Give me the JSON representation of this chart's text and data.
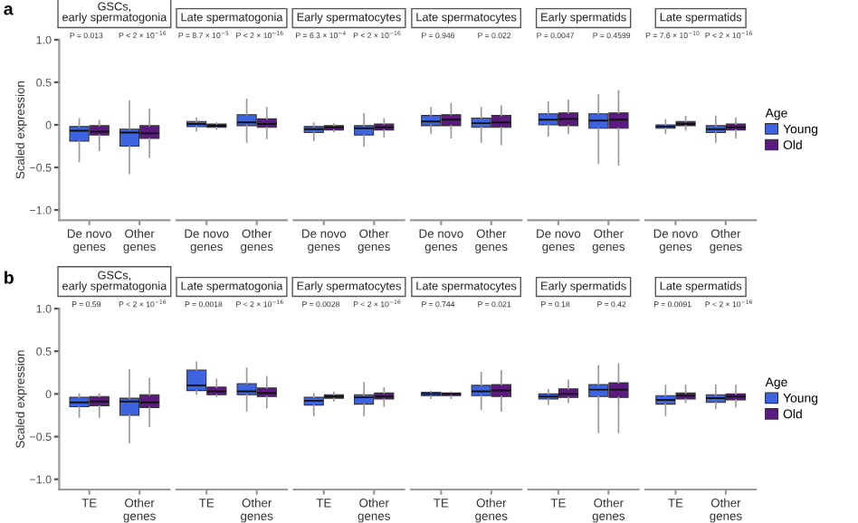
{
  "chart_data": [
    {
      "type": "box",
      "title": "GSCs,\nearly spermatogonia",
      "ylabel": "Scaled expression",
      "categories": [
        "De novo\ngenes",
        "Other\ngenes"
      ],
      "ylim": [
        -1.12,
        1.0
      ],
      "yticks": [
        {
          "value": -1,
          "label": "−1.0"
        },
        {
          "value": -0.5,
          "label": "−0.5"
        },
        0,
        0.5,
        {
          "value": 1,
          "label": "1.0"
        }
      ],
      "annotations": [
        "a",
        "P = 0.013",
        "P < 2 × 10$^{−16}$"
      ],
      "series": [
        {
          "color": "#3d63e0",
          "boxes": [
            {
              "low": -0.43,
              "q1": -0.19,
              "median": -0.07,
              "q3": -0.02,
              "high": 0.07
            },
            {
              "low": -0.57,
              "q1": -0.25,
              "median": -0.09,
              "q3": -0.05,
              "high": 0.28
            }
          ]
        },
        {
          "color": "#5a1a80",
          "boxes": [
            {
              "low": -0.3,
              "q1": -0.12,
              "median": -0.08,
              "q3": -0.01,
              "high": 0.05
            },
            {
              "low": -0.38,
              "q1": -0.16,
              "median": -0.1,
              "q3": -0.01,
              "high": 0.18
            }
          ]
        }
      ]
    },
    {
      "type": "box",
      "title": "Late spermatogonia",
      "categories": [
        "De novo\ngenes",
        "Other\ngenes"
      ],
      "ylim": [
        -1.12,
        1.0
      ],
      "tick_labels": "x",
      "annotations": [
        "P = 8.7 × 10$^{−5}$",
        "P < 2 × 10$^{−16}$"
      ],
      "series": [
        {
          "color": "#3d63e0",
          "boxes": [
            {
              "low": -0.07,
              "q1": -0.02,
              "median": 0.01,
              "q3": 0.04,
              "high": 0.08
            },
            {
              "low": -0.2,
              "q1": -0.01,
              "median": 0.03,
              "q3": 0.12,
              "high": 0.3
            }
          ]
        },
        {
          "color": "#5a1a80",
          "boxes": [
            {
              "low": -0.05,
              "q1": -0.03,
              "median": -0.01,
              "q3": 0.01,
              "high": 0.02
            },
            {
              "low": -0.16,
              "q1": -0.03,
              "median": 0.01,
              "q3": 0.07,
              "high": 0.2
            }
          ]
        }
      ]
    },
    {
      "type": "box",
      "title": "Early spermatocytes",
      "categories": [
        "De novo\ngenes",
        "Other\ngenes"
      ],
      "ylim": [
        -1.12,
        1.0
      ],
      "tick_labels": "x",
      "annotations": [
        "P = 6.3 × 10$^{−4}$",
        "P < 2 × 10$^{−16}$"
      ],
      "series": [
        {
          "color": "#3d63e0",
          "boxes": [
            {
              "low": -0.18,
              "q1": -0.09,
              "median": -0.05,
              "q3": -0.02,
              "high": 0.02
            },
            {
              "low": -0.25,
              "q1": -0.12,
              "median": -0.04,
              "q3": -0.01,
              "high": 0.13
            }
          ]
        },
        {
          "color": "#5a1a80",
          "boxes": [
            {
              "low": -0.08,
              "q1": -0.06,
              "median": -0.03,
              "q3": -0.01,
              "high": 0.01
            },
            {
              "low": -0.14,
              "q1": -0.06,
              "median": -0.03,
              "q3": 0.01,
              "high": 0.07
            }
          ]
        }
      ]
    },
    {
      "type": "box",
      "title": "Late spermatocytes",
      "categories": [
        "De novo\ngenes",
        "Other\ngenes"
      ],
      "ylim": [
        -1.12,
        1.0
      ],
      "tick_labels": "x",
      "annotations": [
        "P = 0.946",
        "P = 0.022"
      ],
      "series": [
        {
          "color": "#3d63e0",
          "boxes": [
            {
              "low": -0.1,
              "q1": -0.01,
              "median": 0.04,
              "q3": 0.11,
              "high": 0.2
            },
            {
              "low": -0.2,
              "q1": -0.03,
              "median": 0.02,
              "q3": 0.08,
              "high": 0.2
            }
          ]
        },
        {
          "color": "#5a1a80",
          "boxes": [
            {
              "low": -0.15,
              "q1": -0.01,
              "median": 0.06,
              "q3": 0.12,
              "high": 0.25
            },
            {
              "low": -0.23,
              "q1": -0.03,
              "median": 0.03,
              "q3": 0.11,
              "high": 0.22
            }
          ]
        }
      ]
    },
    {
      "type": "box",
      "title": "Early spermatids",
      "categories": [
        "De novo\ngenes",
        "Other\ngenes"
      ],
      "ylim": [
        -1.12,
        1.0
      ],
      "tick_labels": "x",
      "annotations": [
        "P = 0.0047",
        "P = 0.4599"
      ],
      "series": [
        {
          "color": "#3d63e0",
          "boxes": [
            {
              "low": -0.13,
              "q1": 0.0,
              "median": 0.06,
              "q3": 0.13,
              "high": 0.27
            },
            {
              "low": -0.45,
              "q1": -0.04,
              "median": 0.05,
              "q3": 0.13,
              "high": 0.35
            }
          ]
        },
        {
          "color": "#5a1a80",
          "boxes": [
            {
              "low": -0.1,
              "q1": -0.01,
              "median": 0.07,
              "q3": 0.14,
              "high": 0.29
            },
            {
              "low": -0.47,
              "q1": -0.04,
              "median": 0.06,
              "q3": 0.14,
              "high": 0.4
            }
          ]
        }
      ]
    },
    {
      "type": "box",
      "title": "Late spermatids",
      "categories": [
        "De novo\ngenes",
        "Other\ngenes"
      ],
      "ylim": [
        -1.12,
        1.0
      ],
      "tick_labels": "x",
      "legend": "right",
      "legend_title": "Age",
      "annotations": [
        "P = 7.6 × 10$^{−10}$",
        "P < 2 × 10$^{−16}$"
      ],
      "series": [
        {
          "name": "Young",
          "color": "#3d63e0",
          "boxes": [
            {
              "low": -0.1,
              "q1": -0.04,
              "median": -0.02,
              "q3": 0.0,
              "high": 0.06
            },
            {
              "low": -0.2,
              "q1": -0.09,
              "median": -0.05,
              "q3": -0.01,
              "high": 0.1
            }
          ]
        },
        {
          "name": "Old",
          "color": "#5a1a80",
          "boxes": [
            {
              "low": -0.06,
              "q1": -0.01,
              "median": 0.01,
              "q3": 0.04,
              "high": 0.1
            },
            {
              "low": -0.15,
              "q1": -0.06,
              "median": -0.03,
              "q3": 0.01,
              "high": 0.08
            }
          ]
        }
      ]
    },
    {
      "type": "box",
      "title": "GSCs,\nearly spermatogonia",
      "ylabel": "Scaled expression",
      "categories": [
        "TE",
        "Other\ngenes"
      ],
      "ylim": [
        -1.12,
        1.0
      ],
      "yticks": [
        {
          "value": -1,
          "label": "−1.0"
        },
        {
          "value": -0.5,
          "label": "−0.5"
        },
        0,
        0.5,
        {
          "value": 1,
          "label": "1.0"
        }
      ],
      "annotations": [
        "b",
        "P = 0.59",
        "P < 2 × 10$^{−16}$"
      ],
      "series": [
        {
          "color": "#3d63e0",
          "boxes": [
            {
              "low": -0.27,
              "q1": -0.15,
              "median": -0.1,
              "q3": -0.04,
              "high": 0.0
            },
            {
              "low": -0.57,
              "q1": -0.25,
              "median": -0.09,
              "q3": -0.05,
              "high": 0.28
            }
          ]
        },
        {
          "color": "#5a1a80",
          "boxes": [
            {
              "low": -0.27,
              "q1": -0.14,
              "median": -0.09,
              "q3": -0.03,
              "high": 0.0
            },
            {
              "low": -0.38,
              "q1": -0.16,
              "median": -0.1,
              "q3": -0.01,
              "high": 0.18
            }
          ]
        }
      ]
    },
    {
      "type": "box",
      "title": "Late spermatogonia",
      "categories": [
        "TE",
        "Other\ngenes"
      ],
      "ylim": [
        -1.12,
        1.0
      ],
      "tick_labels": "x",
      "annotations": [
        "P = 0.0018",
        "P < 2 × 10$^{−16}$"
      ],
      "series": [
        {
          "color": "#3d63e0",
          "boxes": [
            {
              "low": 0.0,
              "q1": 0.04,
              "median": 0.1,
              "q3": 0.28,
              "high": 0.37
            },
            {
              "low": -0.2,
              "q1": -0.01,
              "median": 0.03,
              "q3": 0.12,
              "high": 0.3
            }
          ]
        },
        {
          "color": "#5a1a80",
          "boxes": [
            {
              "low": -0.03,
              "q1": -0.01,
              "median": 0.03,
              "q3": 0.08,
              "high": 0.17
            },
            {
              "low": -0.16,
              "q1": -0.03,
              "median": 0.01,
              "q3": 0.07,
              "high": 0.2
            }
          ]
        }
      ]
    },
    {
      "type": "box",
      "title": "Early spermatocytes",
      "categories": [
        "TE",
        "Other\ngenes"
      ],
      "ylim": [
        -1.12,
        1.0
      ],
      "tick_labels": "x",
      "annotations": [
        "P = 0.0028",
        "P < 2 × 10$^{−16}$"
      ],
      "series": [
        {
          "color": "#3d63e0",
          "boxes": [
            {
              "low": -0.25,
              "q1": -0.13,
              "median": -0.08,
              "q3": -0.04,
              "high": 0.0
            },
            {
              "low": -0.25,
              "q1": -0.12,
              "median": -0.04,
              "q3": -0.01,
              "high": 0.13
            }
          ]
        },
        {
          "color": "#5a1a80",
          "boxes": [
            {
              "low": -0.08,
              "q1": -0.05,
              "median": -0.03,
              "q3": -0.01,
              "high": 0.02
            },
            {
              "low": -0.14,
              "q1": -0.06,
              "median": -0.03,
              "q3": 0.01,
              "high": 0.07
            }
          ]
        }
      ]
    },
    {
      "type": "box",
      "title": "Late spermatocytes",
      "categories": [
        "TE",
        "Other\ngenes"
      ],
      "ylim": [
        -1.12,
        1.0
      ],
      "tick_labels": "x",
      "annotations": [
        "P = 0.744",
        "P = 0.021"
      ],
      "series": [
        {
          "color": "#3d63e0",
          "boxes": [
            {
              "low": -0.05,
              "q1": -0.02,
              "median": 0.0,
              "q3": 0.02,
              "high": 0.03
            },
            {
              "low": -0.18,
              "q1": -0.02,
              "median": 0.03,
              "q3": 0.1,
              "high": 0.25
            }
          ]
        },
        {
          "color": "#5a1a80",
          "boxes": [
            {
              "low": -0.05,
              "q1": -0.02,
              "median": 0.0,
              "q3": 0.01,
              "high": 0.02
            },
            {
              "low": -0.2,
              "q1": -0.03,
              "median": 0.04,
              "q3": 0.11,
              "high": 0.27
            }
          ]
        }
      ]
    },
    {
      "type": "box",
      "title": "Early spermatids",
      "categories": [
        "TE",
        "Other\ngenes"
      ],
      "ylim": [
        -1.12,
        1.0
      ],
      "tick_labels": "x",
      "annotations": [
        "P = 0.18",
        "P = 0.42"
      ],
      "series": [
        {
          "color": "#3d63e0",
          "boxes": [
            {
              "low": -0.12,
              "q1": -0.06,
              "median": -0.03,
              "q3": 0.0,
              "high": 0.05
            },
            {
              "low": -0.45,
              "q1": -0.03,
              "median": 0.05,
              "q3": 0.11,
              "high": 0.33
            }
          ]
        },
        {
          "color": "#5a1a80",
          "boxes": [
            {
              "low": -0.1,
              "q1": -0.04,
              "median": 0.0,
              "q3": 0.06,
              "high": 0.16
            },
            {
              "low": -0.45,
              "q1": -0.04,
              "median": 0.05,
              "q3": 0.13,
              "high": 0.35
            }
          ]
        }
      ]
    },
    {
      "type": "box",
      "title": "Late spermatids",
      "categories": [
        "TE",
        "Other\ngenes"
      ],
      "ylim": [
        -1.12,
        1.0
      ],
      "tick_labels": "x",
      "legend": "right",
      "legend_title": "Age",
      "annotations": [
        "P = 0.0091",
        "P < 2 × 10$^{−16}$"
      ],
      "series": [
        {
          "name": "Young",
          "color": "#3d63e0",
          "boxes": [
            {
              "low": -0.25,
              "q1": -0.12,
              "median": -0.07,
              "q3": -0.02,
              "high": 0.1
            },
            {
              "low": -0.17,
              "q1": -0.1,
              "median": -0.05,
              "q3": -0.01,
              "high": 0.1
            }
          ]
        },
        {
          "name": "Old",
          "color": "#5a1a80",
          "boxes": [
            {
              "low": -0.1,
              "q1": -0.06,
              "median": -0.02,
              "q3": 0.01,
              "high": 0.1
            },
            {
              "low": -0.15,
              "q1": -0.07,
              "median": -0.03,
              "q3": 0.0,
              "high": 0.1
            }
          ]
        }
      ]
    }
  ]
}
